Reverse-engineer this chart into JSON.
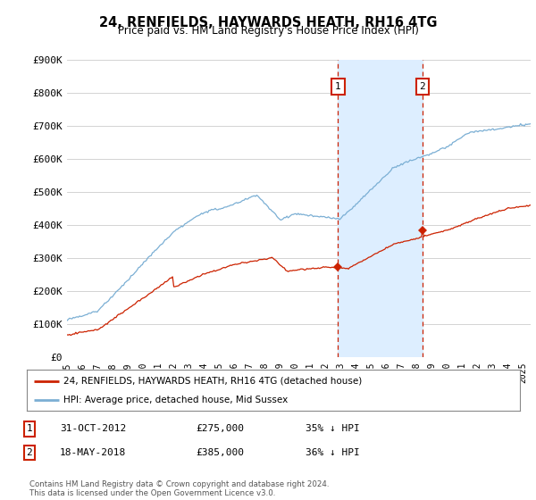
{
  "title": "24, RENFIELDS, HAYWARDS HEATH, RH16 4TG",
  "subtitle": "Price paid vs. HM Land Registry's House Price Index (HPI)",
  "hpi_color": "#7bafd4",
  "price_color": "#cc2200",
  "shaded_color": "#ddeeff",
  "vline_color": "#cc2200",
  "marker1_date": 2012.83,
  "marker2_date": 2018.38,
  "marker1_price": 275000,
  "marker2_price": 385000,
  "ylim": [
    0,
    900000
  ],
  "ytick_labels": [
    "£0",
    "£100K",
    "£200K",
    "£300K",
    "£400K",
    "£500K",
    "£600K",
    "£700K",
    "£800K",
    "£900K"
  ],
  "legend_property": "24, RENFIELDS, HAYWARDS HEATH, RH16 4TG (detached house)",
  "legend_hpi": "HPI: Average price, detached house, Mid Sussex",
  "footnote": "Contains HM Land Registry data © Crown copyright and database right 2024.\nThis data is licensed under the Open Government Licence v3.0.",
  "table_rows": [
    [
      "1",
      "31-OCT-2012",
      "£275,000",
      "35% ↓ HPI"
    ],
    [
      "2",
      "18-MAY-2018",
      "£385,000",
      "36% ↓ HPI"
    ]
  ],
  "xstart": 1995.0,
  "xend": 2025.5
}
